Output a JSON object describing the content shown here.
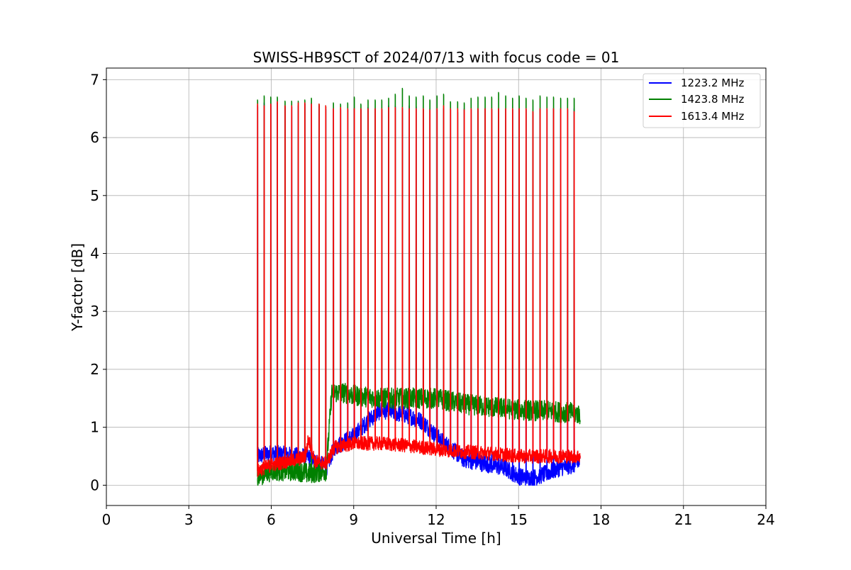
{
  "chart_data": {
    "type": "line",
    "title": "SWISS-HB9SCT of 2024/07/13 with focus code = 01",
    "xlabel": "Universal Time [h]",
    "ylabel": "Y-factor [dB]",
    "xlim": [
      0,
      24
    ],
    "ylim": [
      -0.35,
      7.2
    ],
    "x_ticks": [
      0,
      3,
      6,
      9,
      12,
      15,
      18,
      21,
      24
    ],
    "y_ticks": [
      0,
      1,
      2,
      3,
      4,
      5,
      6,
      7
    ],
    "grid": true,
    "legend_position": "top-right",
    "calibration_spike_times_h": [
      5.5,
      5.74,
      5.98,
      6.22,
      6.5,
      6.74,
      6.98,
      7.22,
      7.46,
      7.74,
      7.98,
      8.26,
      8.52,
      8.78,
      9.02,
      9.26,
      9.52,
      9.78,
      10.02,
      10.27,
      10.51,
      10.77,
      11.02,
      11.27,
      11.53,
      11.77,
      12.03,
      12.27,
      12.52,
      12.78,
      13.02,
      13.27,
      13.52,
      13.78,
      14.02,
      14.27,
      14.53,
      14.78,
      15.02,
      15.27,
      15.52,
      15.78,
      16.03,
      16.27,
      16.53,
      16.78,
      17.02
    ],
    "series": [
      {
        "name": "1223.2 MHz",
        "color": "#0000ff",
        "noise_amplitude_db": 0.15,
        "baseline": {
          "x": [
            5.5,
            6.0,
            7.0,
            7.3,
            8.0,
            8.3,
            9.0,
            9.5,
            10.0,
            10.5,
            11.0,
            11.5,
            12.0,
            12.5,
            13.0,
            13.5,
            14.0,
            14.5,
            15.0,
            15.5,
            16.0,
            16.5,
            17.0,
            17.25
          ],
          "y": [
            0.5,
            0.55,
            0.5,
            0.5,
            0.3,
            0.65,
            0.85,
            1.1,
            1.3,
            1.25,
            1.2,
            1.1,
            0.85,
            0.65,
            0.45,
            0.4,
            0.35,
            0.3,
            0.15,
            0.12,
            0.2,
            0.3,
            0.35,
            0.4
          ]
        },
        "spike_peaks": [
          6.55,
          6.6,
          6.6,
          6.6,
          6.55,
          6.55,
          6.55,
          6.6,
          6.6,
          6.55,
          6.5,
          6.5,
          6.5,
          6.5,
          6.5,
          6.5,
          6.52,
          6.5,
          6.5,
          6.55,
          6.55,
          6.5,
          6.55,
          6.55,
          6.5,
          6.5,
          6.5,
          6.5,
          6.5,
          6.45,
          6.5,
          6.5,
          6.5,
          6.5,
          6.5,
          6.5,
          6.5,
          6.5,
          6.5,
          6.5,
          6.45,
          6.5,
          6.5,
          6.5,
          6.5,
          6.5,
          6.5
        ]
      },
      {
        "name": "1423.8 MHz",
        "color": "#008000",
        "noise_amplitude_db": 0.18,
        "baseline": {
          "x": [
            5.5,
            6.0,
            7.0,
            7.3,
            8.0,
            8.2,
            8.6,
            9.0,
            10.0,
            11.0,
            12.0,
            13.0,
            14.0,
            15.0,
            16.0,
            17.0,
            17.25
          ],
          "y": [
            0.15,
            0.25,
            0.25,
            0.2,
            0.25,
            1.6,
            1.6,
            1.55,
            1.5,
            1.5,
            1.5,
            1.4,
            1.35,
            1.3,
            1.28,
            1.25,
            1.22
          ]
        },
        "spike_peaks": [
          6.65,
          6.72,
          6.7,
          6.7,
          6.63,
          6.63,
          6.63,
          6.65,
          6.68,
          6.58,
          6.55,
          6.6,
          6.58,
          6.6,
          6.7,
          6.58,
          6.65,
          6.65,
          6.65,
          6.68,
          6.75,
          6.85,
          6.72,
          6.7,
          6.72,
          6.65,
          6.72,
          6.75,
          6.62,
          6.62,
          6.6,
          6.68,
          6.7,
          6.7,
          6.7,
          6.78,
          6.72,
          6.68,
          6.72,
          6.68,
          6.65,
          6.72,
          6.7,
          6.7,
          6.68,
          6.68,
          6.68
        ]
      },
      {
        "name": "1613.4 MHz",
        "color": "#ff0000",
        "noise_amplitude_db": 0.12,
        "baseline": {
          "x": [
            5.5,
            6.0,
            7.0,
            7.25,
            7.35,
            7.6,
            8.0,
            8.3,
            9.0,
            10.0,
            11.0,
            12.0,
            13.0,
            14.0,
            15.0,
            16.0,
            17.0,
            17.25
          ],
          "y": [
            0.25,
            0.35,
            0.45,
            0.5,
            0.8,
            0.4,
            0.38,
            0.65,
            0.72,
            0.72,
            0.68,
            0.62,
            0.58,
            0.55,
            0.5,
            0.5,
            0.5,
            0.5
          ]
        },
        "spike_peaks": [
          6.58,
          6.55,
          6.58,
          6.62,
          6.55,
          6.55,
          6.6,
          6.6,
          6.58,
          6.58,
          6.55,
          6.5,
          6.52,
          6.5,
          6.5,
          6.5,
          6.5,
          6.5,
          6.5,
          6.52,
          6.52,
          6.52,
          6.5,
          6.5,
          6.5,
          6.48,
          6.5,
          6.55,
          6.5,
          6.5,
          6.48,
          6.5,
          6.5,
          6.5,
          6.5,
          6.5,
          6.5,
          6.5,
          6.5,
          6.5,
          6.45,
          6.5,
          6.5,
          6.5,
          6.5,
          6.5,
          6.45
        ]
      }
    ]
  }
}
